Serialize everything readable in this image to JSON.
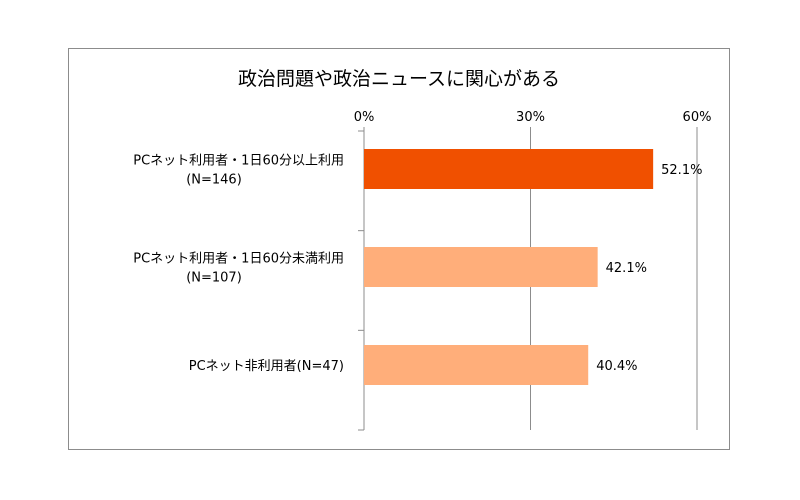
{
  "chart_data": {
    "type": "bar",
    "orientation": "horizontal",
    "title": "政治問題や政治ニュースに関心がある",
    "xlim": [
      0,
      60
    ],
    "ticks": [
      0,
      30,
      60
    ],
    "tick_labels": [
      "0%",
      "30%",
      "60%"
    ],
    "axis_position": "top",
    "grid": true,
    "categories": [
      [
        "PCネット利用者・1日60分以上利用",
        "(N=146)"
      ],
      [
        "PCネット利用者・1日60分未満利用",
        "(N=107)"
      ],
      [
        "PCネット非利用者(N=47)"
      ]
    ],
    "values": [
      52.1,
      42.1,
      40.4
    ],
    "value_labels": [
      "52.1%",
      "42.1%",
      "40.4%"
    ],
    "colors": [
      "#f05000",
      "#ffae7a",
      "#ffae7a"
    ]
  }
}
